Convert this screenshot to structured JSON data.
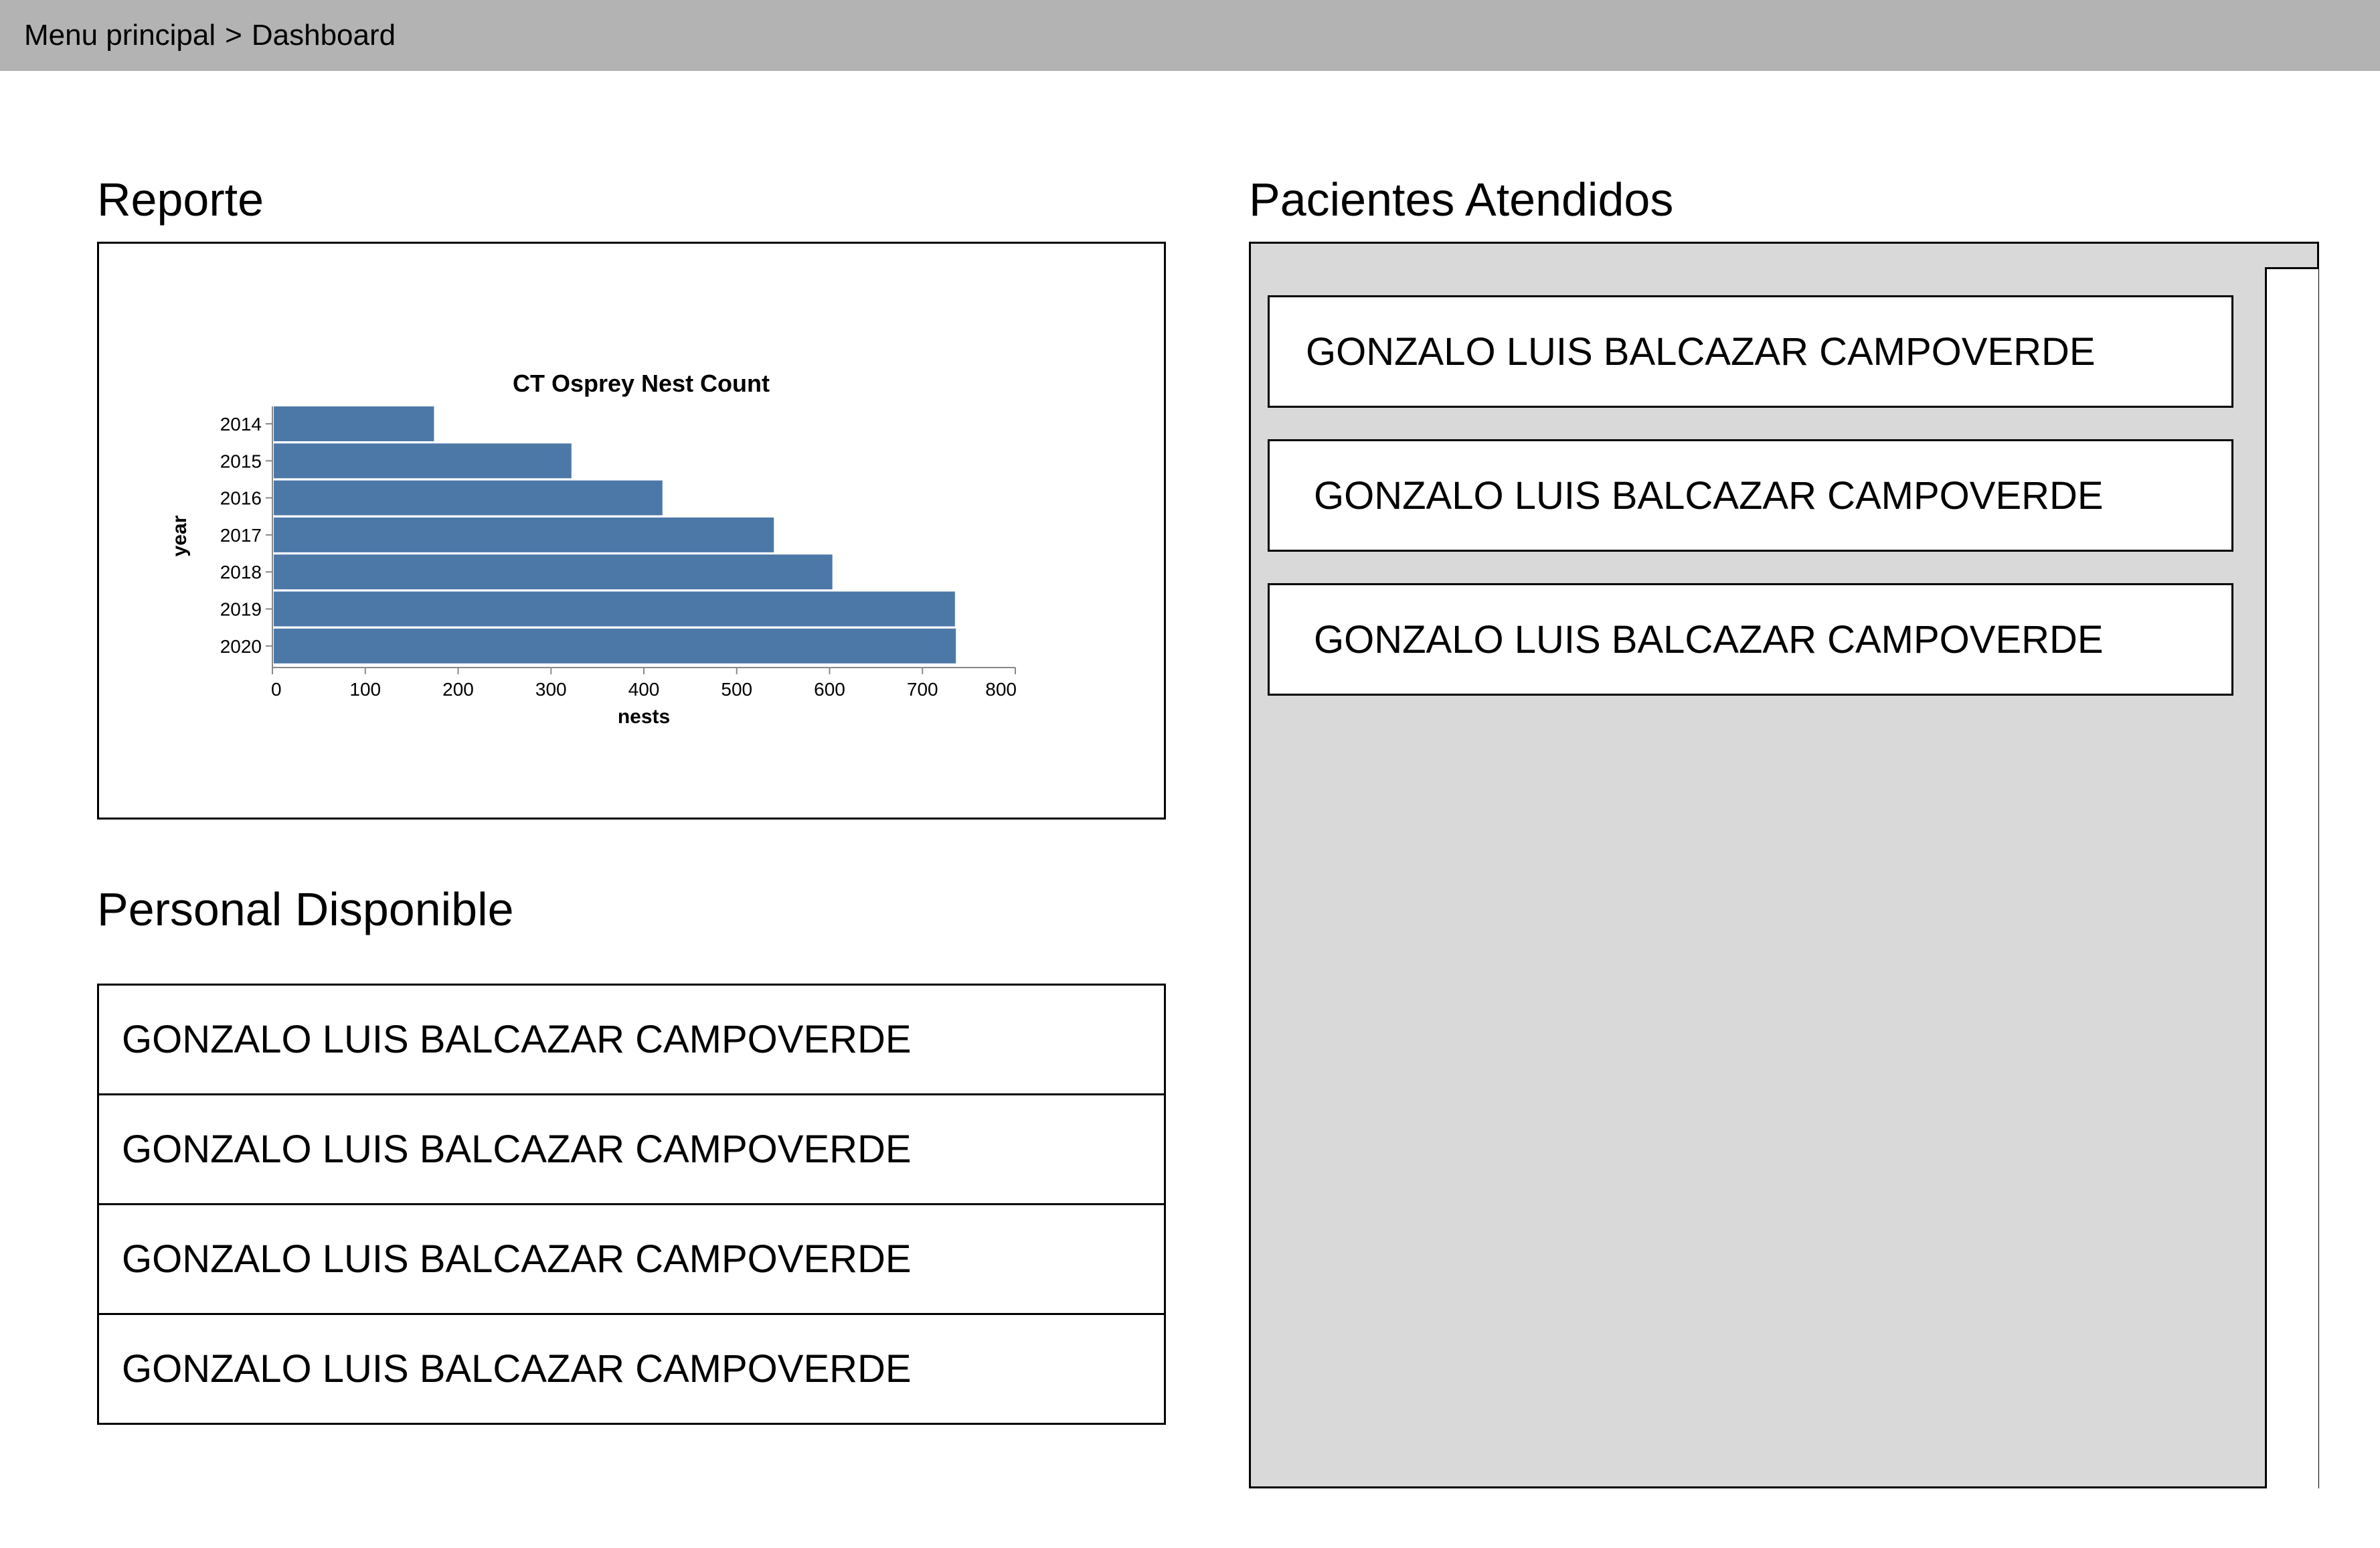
{
  "breadcrumb": {
    "root": "Menu principal",
    "separator": ">",
    "current": "Dashboard"
  },
  "report": {
    "title": "Reporte"
  },
  "staff": {
    "title": "Personal Disponible",
    "items": [
      "GONZALO LUIS BALCAZAR CAMPOVERDE",
      "GONZALO LUIS BALCAZAR CAMPOVERDE",
      "GONZALO LUIS BALCAZAR CAMPOVERDE",
      "GONZALO LUIS BALCAZAR CAMPOVERDE"
    ]
  },
  "patients": {
    "title": "Pacientes Atendidos",
    "items": [
      "GONZALO LUIS BALCAZAR CAMPOVERDE",
      "GONZALO LUIS BALCAZAR CAMPOVERDE",
      "GONZALO LUIS BALCAZAR CAMPOVERDE"
    ]
  },
  "colors": {
    "topbar": "#b3b3b3",
    "panel": "#d9d9d9",
    "bar": "#4c78a8"
  },
  "chart_data": {
    "type": "bar",
    "orientation": "horizontal",
    "title": "CT Osprey Nest Count",
    "xlabel": "nests",
    "ylabel": "year",
    "categories": [
      "2014",
      "2015",
      "2016",
      "2017",
      "2018",
      "2019",
      "2020"
    ],
    "values": [
      174,
      322,
      420,
      540,
      603,
      735,
      736
    ],
    "xlim": [
      0,
      800
    ],
    "xticks": [
      0,
      100,
      200,
      300,
      400,
      500,
      600,
      700,
      800
    ],
    "grid": false
  }
}
